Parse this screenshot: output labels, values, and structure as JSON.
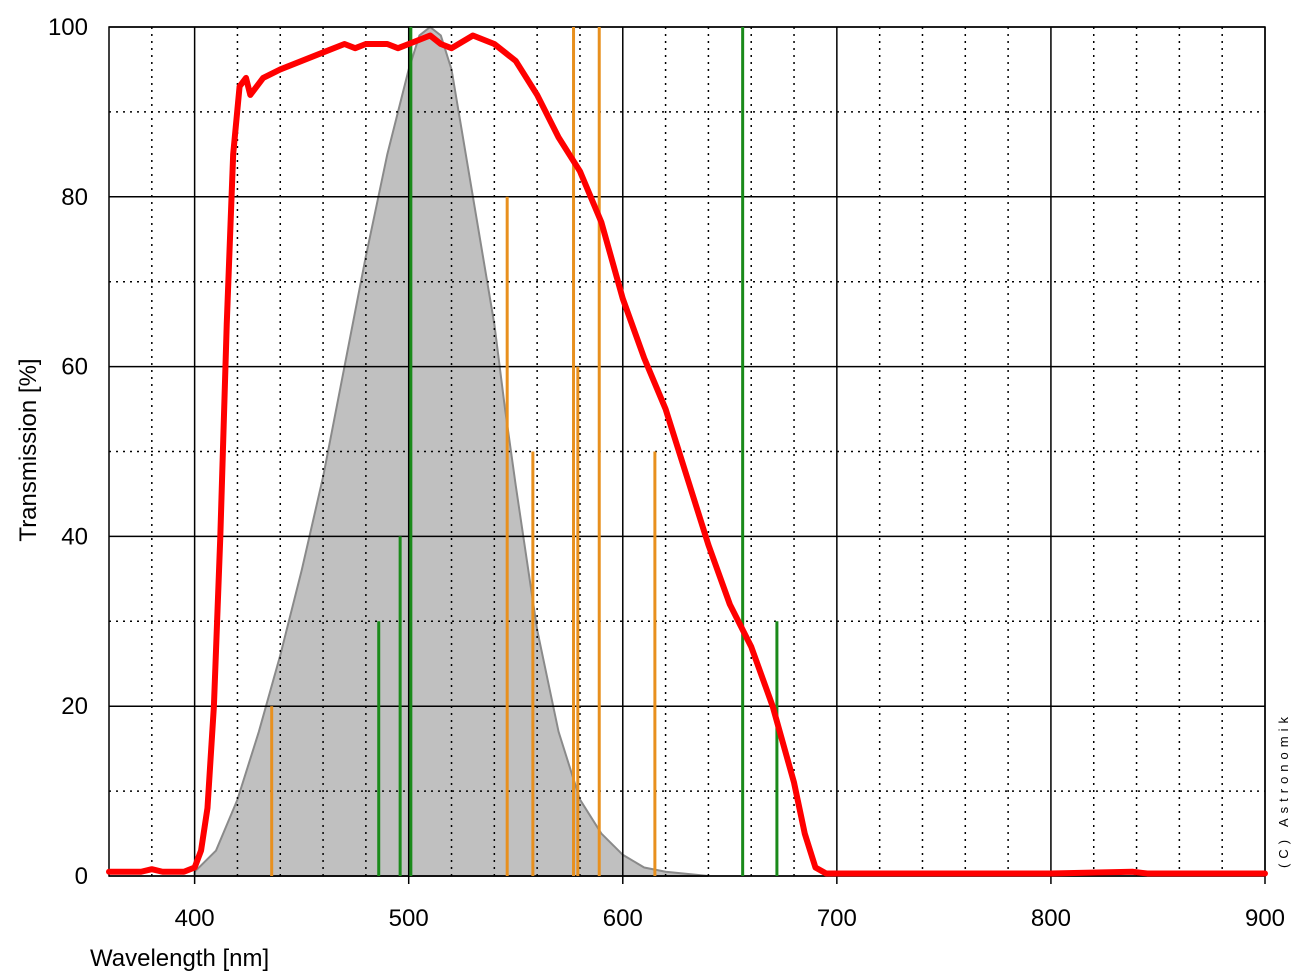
{
  "chart_data": {
    "type": "line",
    "xlabel": "Wavelength [nm]",
    "ylabel": "Transmission [%]",
    "annotation": "(C) Astronomik",
    "xlim": [
      360,
      900
    ],
    "ylim": [
      0,
      100
    ],
    "xticks": [
      400,
      500,
      600,
      700,
      800,
      900
    ],
    "yticks": [
      0,
      20,
      40,
      60,
      80,
      100
    ],
    "xminorticks": [
      380,
      420,
      440,
      460,
      480,
      520,
      540,
      560,
      580,
      620,
      640,
      660,
      680,
      720,
      740,
      760,
      780,
      820,
      840,
      860,
      880
    ],
    "yminorticks": [
      10,
      30,
      50,
      70,
      90
    ],
    "grid": true,
    "series": [
      {
        "kind": "area",
        "color": "#c0c0c0",
        "x": [
          400,
          410,
          420,
          430,
          440,
          450,
          460,
          470,
          480,
          490,
          500,
          505,
          510,
          515,
          520,
          530,
          540,
          545,
          550,
          560,
          570,
          580,
          590,
          600,
          610,
          620,
          640
        ],
        "values": [
          0.5,
          3,
          9,
          17,
          26,
          36,
          47,
          60,
          73,
          85,
          95,
          99,
          100,
          99,
          95,
          80,
          65,
          55,
          46,
          29,
          17,
          9,
          5,
          2.5,
          1,
          0.5,
          0
        ]
      },
      {
        "kind": "stem",
        "color": "#e8901e",
        "x": [
          436,
          546,
          558,
          577,
          579,
          589,
          615
        ],
        "values": [
          20,
          80,
          50,
          100,
          60,
          100,
          50
        ]
      },
      {
        "kind": "stem",
        "color": "#1a8a1a",
        "x": [
          486,
          496,
          501,
          656,
          672
        ],
        "values": [
          30,
          40,
          100,
          100,
          30
        ]
      },
      {
        "kind": "line",
        "color": "#ff0000",
        "x": [
          360,
          375,
          380,
          385,
          395,
          400,
          403,
          406,
          409,
          412,
          415,
          418,
          421,
          424,
          426,
          429,
          432,
          440,
          450,
          460,
          470,
          475,
          480,
          490,
          495,
          500,
          505,
          510,
          515,
          520,
          530,
          540,
          550,
          560,
          570,
          580,
          590,
          600,
          610,
          620,
          630,
          640,
          650,
          660,
          670,
          680,
          685,
          690,
          695,
          700,
          800,
          838,
          845,
          900
        ],
        "values": [
          0.5,
          0.5,
          0.8,
          0.5,
          0.5,
          1,
          3,
          8,
          20,
          40,
          65,
          85,
          93,
          94,
          92,
          93,
          94,
          95,
          96,
          97,
          98,
          97.5,
          98,
          98,
          97.5,
          98,
          98.5,
          99,
          98,
          97.5,
          99,
          98,
          96,
          92,
          87,
          83,
          77,
          68,
          61,
          55,
          47,
          39,
          32,
          27,
          20,
          11,
          5,
          1,
          0.3,
          0.3,
          0.3,
          0.5,
          0.3,
          0.3
        ]
      }
    ]
  }
}
